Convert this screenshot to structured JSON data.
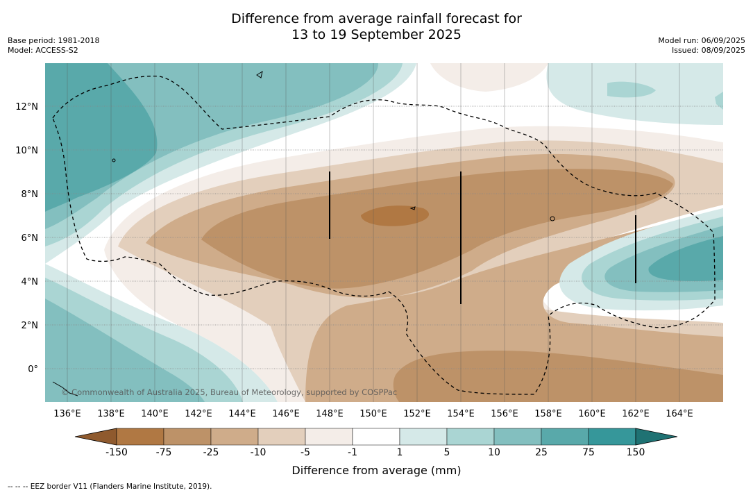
{
  "header": {
    "title_line1": "Difference from average rainfall forecast for",
    "title_line2": "13 to 19 September 2025",
    "base_period": "Base period: 1981-2018",
    "model": "Model: ACCESS-S2",
    "model_run": "Model run: 06/09/2025",
    "issued": "Issued: 08/09/2025"
  },
  "map": {
    "lat_labels": [
      "12°N",
      "10°N",
      "8°N",
      "6°N",
      "4°N",
      "2°N",
      "0°"
    ],
    "lon_labels": [
      "136°E",
      "138°E",
      "140°E",
      "142°E",
      "144°E",
      "146°E",
      "148°E",
      "150°E",
      "152°E",
      "154°E",
      "156°E",
      "158°E",
      "160°E",
      "162°E",
      "164°E"
    ],
    "copyright": "© Commonwealth of Australia 2025, Bureau of Meteorology, supported by COSPPac"
  },
  "colorbar": {
    "labels": [
      "-150",
      "-75",
      "-25",
      "-10",
      "-5",
      "-1",
      "1",
      "5",
      "10",
      "25",
      "75",
      "150"
    ],
    "colors": [
      "#8f5a2e",
      "#b07843",
      "#bd9268",
      "#cfac8a",
      "#e3cfbc",
      "#f4ede8",
      "#ffffff",
      "#d5e9e8",
      "#aad5d3",
      "#83bfbf",
      "#59a9aa",
      "#36979a",
      "#1f7273"
    ],
    "title": "Difference from average (mm)"
  },
  "footnote": "--  --  -- EEZ border V11 (Flanders Marine Institute, 2019)."
}
